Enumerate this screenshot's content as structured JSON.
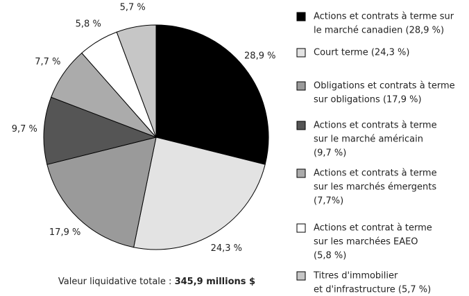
{
  "chart_data": {
    "type": "pie",
    "categories": [
      "Actions et contrats à terme sur le marché canadien (28,9 %)",
      "Court terme (24,3 %)",
      "Obligations et contrats à terme sur obligations (17,9 %)",
      "Actions et contrats à terme sur le marché américain (9,7 %)",
      "Actions et contrats à terme sur les marchés émergents (7,7%)",
      "Actions et contrat à terme sur les marchées EAEO (5,8 %)",
      "Titres d'immobilier et d'infrastructure (5,7 %)"
    ],
    "legend_lines": [
      [
        "Actions et contrats à terme sur",
        "le marché canadien (28,9 %)"
      ],
      [
        "Court terme (24,3 %)"
      ],
      [
        "Obligations et contrats à terme",
        "sur obligations (17,9 %)"
      ],
      [
        "Actions et contrats à terme",
        "sur le marché américain",
        "(9,7 %)"
      ],
      [
        "Actions et contrats à terme",
        "sur les marchés émergents",
        "(7,7%)"
      ],
      [
        "Actions et contrat à terme",
        "sur les marchées EAEO",
        "(5,8 %)"
      ],
      [
        "Titres d'immobilier",
        "et d'infrastructure (5,7 %)"
      ]
    ],
    "values": [
      28.9,
      24.3,
      17.9,
      9.7,
      7.7,
      5.8,
      5.7
    ],
    "value_labels": [
      "28,9 %",
      "24,3 %",
      "17,9 %",
      "9,7 %",
      "7,7 %",
      "5,8 %",
      "5,7 %"
    ],
    "colors": [
      "#000000",
      "#e3e3e3",
      "#9a9a9a",
      "#555555",
      "#ababab",
      "#ffffff",
      "#c6c6c6"
    ],
    "caption": {
      "text": "Valeur liquidative totale :",
      "value": "345,9 millions $"
    }
  }
}
